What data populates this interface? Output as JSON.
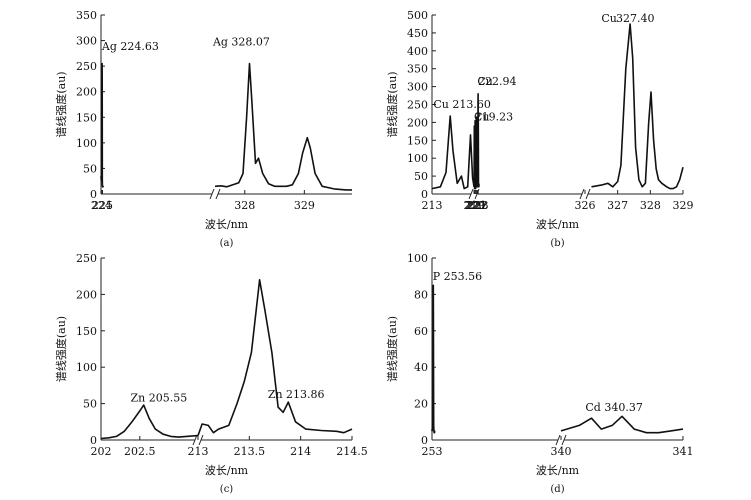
{
  "chart_data": [
    {
      "type": "line",
      "panel_label": "(a)",
      "xlabel": "波长/nm",
      "ylabel": "谱线强度(au)",
      "ylim": [
        0,
        350
      ],
      "yticks": [
        0,
        50,
        100,
        150,
        200,
        250,
        300,
        350
      ],
      "segments": [
        {
          "xlim": [
            223.6,
            329.8
          ],
          "xticks": [
            {
              "pos": 224,
              "label": "224"
            },
            {
              "pos": 225,
              "label": "225"
            }
          ],
          "points": [
            [
              223.6,
              30
            ],
            [
              223.7,
              35
            ],
            [
              223.8,
              28
            ],
            [
              223.9,
              32
            ],
            [
              224.0,
              25
            ],
            [
              224.1,
              30
            ],
            [
              224.18,
              45
            ],
            [
              224.25,
              200
            ],
            [
              224.3,
              215
            ],
            [
              224.35,
              120
            ],
            [
              224.42,
              40
            ],
            [
              224.5,
              35
            ],
            [
              224.58,
              60
            ],
            [
              224.66,
              255
            ],
            [
              224.72,
              230
            ],
            [
              224.78,
              80
            ],
            [
              224.85,
              30
            ],
            [
              224.92,
              18
            ],
            [
              225.0,
              15
            ],
            [
              225.1,
              14
            ],
            [
              225.2,
              15
            ],
            [
              225.3,
              14
            ],
            [
              225.4,
              15
            ],
            [
              225.5,
              14
            ],
            [
              225.6,
              16
            ]
          ]
        },
        {
          "xlim": [
            327.5,
            329.8
          ],
          "xticks": [
            {
              "pos": 328,
              "label": "328"
            },
            {
              "pos": 329,
              "label": "329"
            }
          ],
          "points": [
            [
              327.5,
              15
            ],
            [
              327.6,
              16
            ],
            [
              327.7,
              14
            ],
            [
              327.8,
              18
            ],
            [
              327.9,
              22
            ],
            [
              327.97,
              40
            ],
            [
              328.03,
              150
            ],
            [
              328.08,
              255
            ],
            [
              328.12,
              180
            ],
            [
              328.18,
              60
            ],
            [
              328.23,
              70
            ],
            [
              328.3,
              40
            ],
            [
              328.4,
              20
            ],
            [
              328.5,
              15
            ],
            [
              328.6,
              15
            ],
            [
              328.7,
              15
            ],
            [
              328.8,
              18
            ],
            [
              328.9,
              40
            ],
            [
              328.97,
              80
            ],
            [
              329.05,
              110
            ],
            [
              329.1,
              90
            ],
            [
              329.18,
              40
            ],
            [
              329.3,
              15
            ],
            [
              329.5,
              10
            ],
            [
              329.7,
              8
            ],
            [
              329.8,
              8
            ]
          ]
        }
      ],
      "annotations": [
        {
          "text": "Ag 224.63",
          "x": 224.45,
          "y": 282
        },
        {
          "text": "Ag 328.07",
          "x": 327.88,
          "y": 290
        }
      ]
    },
    {
      "type": "line",
      "panel_label": "(b)",
      "xlabel": "波长/nm",
      "ylabel": "谱线强度(au)",
      "ylim": [
        0,
        500
      ],
      "yticks": [
        0,
        50,
        100,
        150,
        200,
        250,
        300,
        350,
        400,
        450,
        500
      ],
      "segments": [
        {
          "xlim": [
            213,
            219
          ],
          "xticks": [
            {
              "pos": 213,
              "label": "213"
            },
            {
              "pos": 219,
              "label": "219"
            }
          ],
          "points": [
            [
              213.0,
              15
            ],
            [
              214.2,
              20
            ],
            [
              215.0,
              60
            ],
            [
              215.6,
              218
            ],
            [
              216.0,
              120
            ],
            [
              216.6,
              30
            ],
            [
              217.2,
              50
            ],
            [
              217.6,
              15
            ],
            [
              218.1,
              20
            ],
            [
              218.5,
              165
            ],
            [
              218.8,
              45
            ],
            [
              219.0,
              20
            ]
          ]
        },
        {
          "xlim": [
            219,
            326
          ],
          "xticks": [
            {
              "pos": 220,
              "label": "220"
            },
            {
              "pos": 221,
              "label": "221"
            },
            {
              "pos": 222,
              "label": "222"
            },
            {
              "pos": 223,
              "label": "223"
            }
          ],
          "points": [
            [
              219.0,
              20
            ],
            [
              219.15,
              100
            ],
            [
              219.25,
              190
            ],
            [
              219.33,
              70
            ],
            [
              219.45,
              20
            ],
            [
              219.6,
              15
            ],
            [
              219.8,
              25
            ],
            [
              219.95,
              120
            ],
            [
              220.03,
              205
            ],
            [
              220.12,
              90
            ],
            [
              220.25,
              20
            ],
            [
              220.5,
              15
            ],
            [
              220.7,
              20
            ],
            [
              220.95,
              30
            ],
            [
              221.05,
              80
            ],
            [
              221.12,
              140
            ],
            [
              221.2,
              75
            ],
            [
              221.35,
              20
            ],
            [
              221.55,
              150
            ],
            [
              221.65,
              215
            ],
            [
              221.75,
              170
            ],
            [
              221.85,
              130
            ],
            [
              221.93,
              200
            ],
            [
              222.0,
              160
            ],
            [
              222.1,
              40
            ],
            [
              222.3,
              20
            ],
            [
              222.5,
              25
            ],
            [
              222.7,
              30
            ],
            [
              222.82,
              120
            ],
            [
              222.9,
              255
            ],
            [
              222.96,
              280
            ],
            [
              223.04,
              180
            ],
            [
              223.12,
              205
            ],
            [
              223.2,
              120
            ],
            [
              223.3,
              25
            ],
            [
              223.5,
              20
            ],
            [
              223.7,
              28
            ],
            [
              223.85,
              20
            ]
          ]
        },
        {
          "xlim": [
            326,
            329
          ],
          "xticks": [
            {
              "pos": 326,
              "label": "326"
            },
            {
              "pos": 327,
              "label": "327"
            },
            {
              "pos": 328,
              "label": "328"
            },
            {
              "pos": 329,
              "label": "329"
            }
          ],
          "points": [
            [
              326.2,
              20
            ],
            [
              326.5,
              25
            ],
            [
              326.7,
              30
            ],
            [
              326.85,
              20
            ],
            [
              327.0,
              35
            ],
            [
              327.1,
              80
            ],
            [
              327.25,
              350
            ],
            [
              327.38,
              475
            ],
            [
              327.46,
              380
            ],
            [
              327.55,
              130
            ],
            [
              327.65,
              40
            ],
            [
              327.75,
              20
            ],
            [
              327.85,
              30
            ],
            [
              327.95,
              200
            ],
            [
              328.02,
              285
            ],
            [
              328.1,
              150
            ],
            [
              328.18,
              70
            ],
            [
              328.25,
              40
            ],
            [
              328.35,
              30
            ],
            [
              328.5,
              20
            ],
            [
              328.6,
              15
            ],
            [
              328.7,
              15
            ],
            [
              328.8,
              20
            ],
            [
              328.9,
              40
            ],
            [
              329.0,
              75
            ]
          ]
        }
      ],
      "annotations": [
        {
          "text": "Cu 213.60",
          "x": 213.2,
          "y": 240
        },
        {
          "text": "Cu",
          "x": 219.02,
          "y": 205
        },
        {
          "text": "219.23",
          "x": 219.6,
          "y": 205
        },
        {
          "text": "Cu",
          "x": 222.25,
          "y": 305
        },
        {
          "text": "222.94",
          "x": 222.82,
          "y": 305
        },
        {
          "text": "Cu",
          "x": 326.5,
          "y": 480
        },
        {
          "text": "327.40",
          "x": 326.95,
          "y": 480
        }
      ]
    },
    {
      "type": "line",
      "panel_label": "(c)",
      "xlabel": "波长/nm",
      "ylabel": "谱线强度(au)",
      "ylim": [
        0,
        250
      ],
      "yticks": [
        0,
        50,
        100,
        150,
        200,
        250
      ],
      "segments": [
        {
          "xlim": [
            202,
            203.25
          ],
          "xticks": [
            {
              "pos": 202,
              "label": "202"
            },
            {
              "pos": 202.5,
              "label": "202.5"
            }
          ],
          "points": [
            [
              202.0,
              2
            ],
            [
              202.1,
              3
            ],
            [
              202.2,
              5
            ],
            [
              202.3,
              12
            ],
            [
              202.4,
              25
            ],
            [
              202.5,
              40
            ],
            [
              202.55,
              48
            ],
            [
              202.62,
              30
            ],
            [
              202.7,
              15
            ],
            [
              202.8,
              8
            ],
            [
              202.9,
              5
            ],
            [
              203.0,
              4
            ],
            [
              203.1,
              5
            ],
            [
              203.25,
              6
            ]
          ]
        },
        {
          "xlim": [
            213,
            214.5
          ],
          "xticks": [
            {
              "pos": 213,
              "label": "213"
            },
            {
              "pos": 213.5,
              "label": "213.5"
            },
            {
              "pos": 214,
              "label": "214"
            },
            {
              "pos": 214.5,
              "label": "214.5"
            }
          ],
          "points": [
            [
              213.0,
              6
            ],
            [
              213.04,
              22
            ],
            [
              213.1,
              20
            ],
            [
              213.15,
              10
            ],
            [
              213.2,
              15
            ],
            [
              213.3,
              20
            ],
            [
              213.38,
              50
            ],
            [
              213.45,
              80
            ],
            [
              213.52,
              120
            ],
            [
              213.6,
              220
            ],
            [
              213.65,
              180
            ],
            [
              213.72,
              120
            ],
            [
              213.78,
              45
            ],
            [
              213.83,
              38
            ],
            [
              213.88,
              52
            ],
            [
              213.95,
              25
            ],
            [
              214.05,
              15
            ],
            [
              214.2,
              13
            ],
            [
              214.35,
              12
            ],
            [
              214.42,
              10
            ],
            [
              214.5,
              15
            ]
          ]
        }
      ],
      "annotations": [
        {
          "text": "Zn 205.55",
          "x": 202.38,
          "y": 53
        },
        {
          "text": "Zn 213.86",
          "x": 213.68,
          "y": 58
        }
      ]
    },
    {
      "type": "line",
      "panel_label": "(d)",
      "xlabel": "波长/nm",
      "ylabel": "谱线强度(au)",
      "ylim": [
        0,
        100
      ],
      "yticks": [
        0,
        20,
        40,
        60,
        80,
        100
      ],
      "segments": [
        {
          "xlim": [
            253,
            340
          ],
          "xticks": [
            {
              "pos": 253,
              "label": "253"
            },
            {
              "pos": 340,
              "label": "340"
            }
          ],
          "points": [
            [
              253.0,
              6
            ],
            [
              253.1,
              5
            ],
            [
              253.25,
              6
            ],
            [
              253.37,
              8
            ],
            [
              253.47,
              20
            ],
            [
              253.6,
              20
            ],
            [
              253.7,
              28
            ],
            [
              253.8,
              60
            ],
            [
              253.88,
              85
            ],
            [
              253.95,
              70
            ],
            [
              254.05,
              25
            ],
            [
              254.15,
              8
            ],
            [
              254.3,
              5
            ],
            [
              254.5,
              4
            ],
            [
              254.7,
              5
            ],
            [
              254.9,
              4
            ],
            [
              255.0,
              4
            ]
          ]
        },
        {
          "xlim": [
            340,
            341
          ],
          "xticks": [
            {
              "pos": 341,
              "label": "341"
            }
          ],
          "points": [
            [
              340.0,
              5
            ],
            [
              340.15,
              8
            ],
            [
              340.25,
              12
            ],
            [
              340.33,
              6
            ],
            [
              340.42,
              8
            ],
            [
              340.5,
              13
            ],
            [
              340.6,
              6
            ],
            [
              340.7,
              4
            ],
            [
              340.8,
              4
            ],
            [
              340.9,
              5
            ],
            [
              341.0,
              6
            ]
          ]
        }
      ],
      "annotations": [
        {
          "text": "P 253.56",
          "x": 253.47,
          "y": 88
        },
        {
          "text": "Cd 340.37",
          "x": 340.2,
          "y": 16
        }
      ]
    }
  ]
}
